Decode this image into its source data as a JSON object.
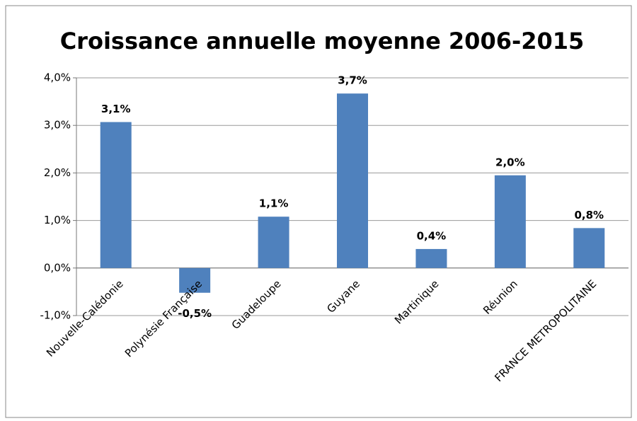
{
  "chart_data": {
    "type": "bar",
    "title": "Croissance annuelle moyenne 2006-2015",
    "categories": [
      "Nouvelle-Calédonie",
      "Polynésie Française",
      "Guadeloupe",
      "Guyane",
      "Martinique",
      "Réunion",
      "FRANCE METROPOLITAINE"
    ],
    "values": [
      3.07,
      -0.52,
      1.08,
      3.67,
      0.4,
      1.95,
      0.84
    ],
    "value_labels": [
      "3,1%",
      "-0,5%",
      "1,1%",
      "3,7%",
      "0,4%",
      "2,0%",
      "0,8%"
    ],
    "color": "#4f81bd",
    "ylim": [
      -1,
      4
    ],
    "yticks": [
      {
        "value": -1,
        "label": "-1,0%"
      },
      {
        "value": 0,
        "label": "0,0%"
      },
      {
        "value": 1,
        "label": "1,0%"
      },
      {
        "value": 2,
        "label": "2,0%"
      },
      {
        "value": 3,
        "label": "3,0%"
      },
      {
        "value": 4,
        "label": "4,0%"
      }
    ],
    "grid": true
  }
}
